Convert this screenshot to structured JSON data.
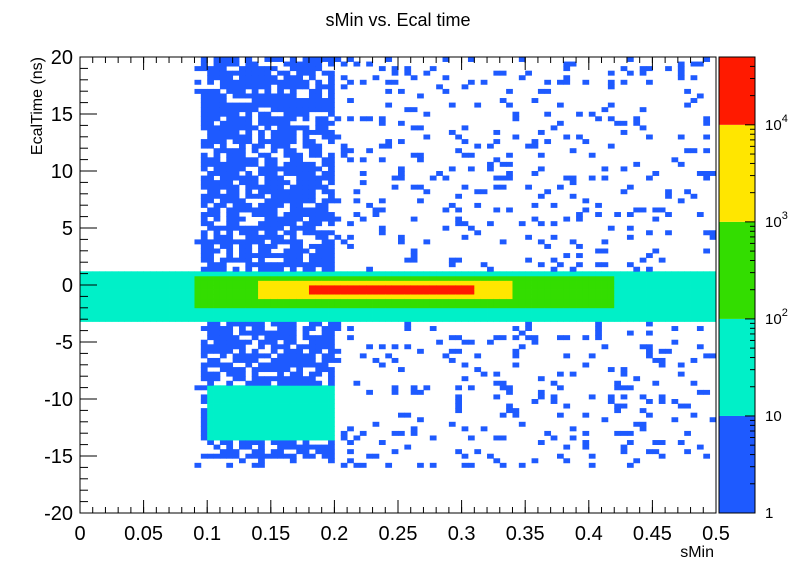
{
  "chart_data": {
    "type": "heatmap",
    "title": "sMin vs. Ecal time",
    "xlabel": "sMin",
    "ylabel": "EcalTime (ns)",
    "xlim": [
      0,
      0.5
    ],
    "ylim": [
      -20,
      20
    ],
    "x_ticks": [
      "0",
      "0.05",
      "0.1",
      "0.15",
      "0.2",
      "0.25",
      "0.3",
      "0.35",
      "0.4",
      "0.45",
      "0.5"
    ],
    "y_ticks": [
      "-20",
      "-15",
      "-10",
      "-5",
      "0",
      "5",
      "10",
      "15",
      "20"
    ],
    "z_scale": "log",
    "z_range": [
      1,
      50000
    ],
    "colorbar": {
      "colors": [
        "#1e5aff",
        "#00f0c8",
        "#33dd00",
        "#ffe600",
        "#ff1a00"
      ],
      "tick_labels": [
        {
          "base": "1",
          "exp": ""
        },
        {
          "base": "10",
          "exp": ""
        },
        {
          "base": "10",
          "exp": "2"
        },
        {
          "base": "10",
          "exp": "3"
        },
        {
          "base": "10",
          "exp": "4"
        }
      ]
    },
    "regions": [
      {
        "name": "diffuse band",
        "x": [
          0.09,
          0.5
        ],
        "y": [
          -16,
          20
        ],
        "level": 1
      },
      {
        "name": "vertical band",
        "x": [
          0.095,
          0.2
        ],
        "y": [
          -15,
          20
        ],
        "level": 1
      },
      {
        "name": "late cluster",
        "x": [
          0.1,
          0.2
        ],
        "y": [
          -13.5,
          -9
        ],
        "level": 2
      },
      {
        "name": "central ridge",
        "x": [
          0.0,
          0.5
        ],
        "y": [
          -3,
          1
        ],
        "level": 2
      },
      {
        "name": "ridge core",
        "x": [
          0.09,
          0.42
        ],
        "y": [
          -2,
          0.8
        ],
        "level": 3
      },
      {
        "name": "ridge peak",
        "x": [
          0.14,
          0.34
        ],
        "y": [
          -1.3,
          0.5
        ],
        "level": 4
      },
      {
        "name": "maximum",
        "x": [
          0.18,
          0.31
        ],
        "y": [
          -0.8,
          0.2
        ],
        "level": 5
      }
    ]
  }
}
